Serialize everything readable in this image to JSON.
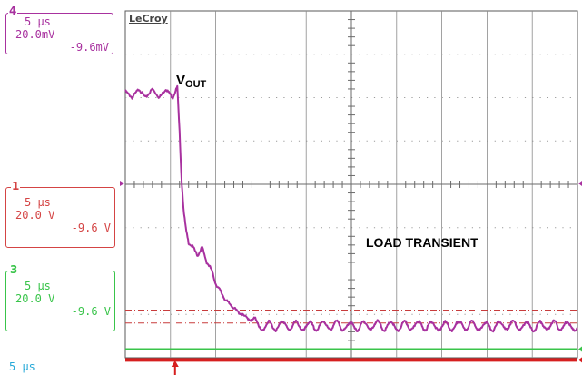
{
  "chart_data": {
    "type": "line",
    "instrument": "LeCroy",
    "annotations": {
      "vout_main": "V",
      "vout_sub": "OUT",
      "load": "LOAD TRANSIENT"
    },
    "timebase_label": "5 µs",
    "x_divisions": 10,
    "y_divisions": 8,
    "trigger_position_div": 1.1,
    "channels": [
      {
        "id": "4",
        "color": "#a8319f",
        "lines": [
          "5 µs",
          "20.0mV",
          "-9.6mV"
        ]
      },
      {
        "id": "1",
        "color": "#d44444",
        "lines": [
          "5 µs",
          "20.0 V",
          "-9.6 V"
        ]
      },
      {
        "id": "3",
        "color": "#39c44a",
        "lines": [
          "5 µs",
          "20.0 V",
          "-9.6 V"
        ]
      }
    ],
    "series": [
      {
        "channel": "4",
        "color": "#a8319f",
        "x_div": [
          0,
          0.15,
          0.3,
          0.45,
          0.6,
          0.75,
          0.9,
          1.05,
          1.15,
          1.2,
          1.25,
          1.3,
          1.35,
          1.4,
          1.5,
          1.6,
          1.7,
          1.8,
          1.9,
          2.0,
          2.1,
          2.2,
          2.35,
          2.5,
          2.65,
          2.8,
          3.0,
          3.5,
          4.0,
          4.5,
          5.0,
          5.5,
          6.0,
          6.5,
          7.0,
          7.5,
          8.0,
          8.5,
          9.0,
          9.5,
          10.0
        ],
        "y_div": [
          6.15,
          6.0,
          6.2,
          6.0,
          6.2,
          6.0,
          6.2,
          6.0,
          6.25,
          5.2,
          4.0,
          3.3,
          2.9,
          2.65,
          2.55,
          2.35,
          2.55,
          2.2,
          2.05,
          1.7,
          1.55,
          1.35,
          1.2,
          1.05,
          0.95,
          0.85,
          0.72,
          0.75,
          0.72,
          0.75,
          0.72,
          0.75,
          0.72,
          0.75,
          0.72,
          0.75,
          0.72,
          0.75,
          0.72,
          0.75,
          0.72
        ],
        "ripple_div": 0.2
      },
      {
        "channel": "3",
        "color": "#39c44a",
        "level_div": 0.2
      },
      {
        "channel": "1",
        "color": "#d61f1f",
        "level_div": -0.05
      }
    ],
    "reference_lines": [
      {
        "color": "#c83c3c",
        "style": "dash-dot",
        "level_div": 1.1
      },
      {
        "color": "#c83c3c",
        "style": "dash-dot",
        "level_div": 0.8
      }
    ]
  }
}
